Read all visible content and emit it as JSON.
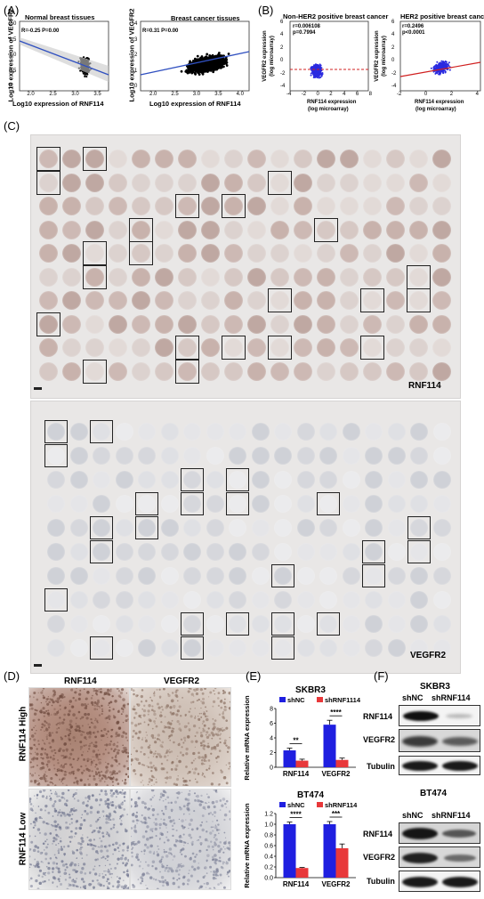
{
  "panels": {
    "A": {
      "label": "(A)",
      "left_plot": {
        "title": "Normal breast tissues",
        "stats": "R=-0.25 P=0.00",
        "xlabel": "Log10 expression of RNF114",
        "ylabel": "Log10 expression of VEGFR2",
        "xticks": [
          "2.0",
          "2.5",
          "3.0",
          "3.5"
        ],
        "yticks": [
          "2.0",
          "1.5",
          "1.0",
          "0.5",
          "0"
        ]
      },
      "right_plot": {
        "title": "Breast cancer tissues",
        "stats": "R=0.31 P=0.00",
        "xlabel": "Log10 expression of RNF114",
        "ylabel": "Log10 expression of VEGFR2",
        "xticks": [
          "2.0",
          "2.5",
          "3.0",
          "3.5",
          "4.0"
        ],
        "yticks": [
          "4",
          "3",
          "2",
          "1",
          "0"
        ]
      }
    },
    "B": {
      "label": "(B)",
      "left_plot": {
        "title": "Non-HER2 positive breast cancer",
        "r": "r=0.006108",
        "p": "p=0.7994",
        "xlabel1": "RNF114 expression",
        "xlabel2": "(log microarray)",
        "ylabel1": "VEGFR2 expression",
        "ylabel2": "(log microarray)",
        "xticks": [
          "-4",
          "-2",
          "0",
          "2",
          "4",
          "6",
          "8"
        ],
        "yticks": [
          "6",
          "4",
          "2",
          "0",
          "-2",
          "-4"
        ]
      },
      "right_plot": {
        "title": "HER2 positive breast cancer",
        "r": "r=0.2496",
        "p": "p<0.0001",
        "xlabel1": "RNF114 expression",
        "xlabel2": "(log microarray)",
        "ylabel1": "VEGFR2 expression",
        "ylabel2": "(log microarray)",
        "xticks": [
          "-2",
          "0",
          "2",
          "4"
        ],
        "yticks": [
          "6",
          "4",
          "2",
          "0",
          "-2",
          "-4"
        ]
      }
    },
    "C": {
      "label": "(C)",
      "top_marker": "RNF114",
      "bottom_marker": "VEGFR2"
    },
    "D": {
      "label": "(D)",
      "col1": "RNF114",
      "col2": "VEGFR2",
      "row1": "RNF114 High",
      "row2": "RNF114 Low"
    },
    "E": {
      "label": "(E)"
    },
    "F": {
      "label": "(F)",
      "top": {
        "cell": "SKBR3",
        "lane1": "shNC",
        "lane2": "shRNF114",
        "rows": [
          "RNF114",
          "VEGFR2",
          "Tubulin"
        ]
      },
      "bottom": {
        "cell": "BT474",
        "lane1": "shNC",
        "lane2": "shRNF114",
        "rows": [
          "RNF114",
          "VEGFR2",
          "Tubulin"
        ]
      }
    }
  },
  "chart_data": [
    {
      "type": "bar",
      "title": "SKBR3",
      "ylabel": "Relative mRNA expression",
      "categories": [
        "RNF114",
        "VEGFR2"
      ],
      "series": [
        {
          "name": "shNC",
          "values": [
            2.3,
            5.8
          ]
        },
        {
          "name": "shRNF1114",
          "values": [
            0.9,
            1.0
          ]
        }
      ],
      "errors": [
        [
          0.3,
          0.6
        ],
        [
          0.2,
          0.25
        ]
      ],
      "significance": [
        "**",
        "****"
      ],
      "yticks": [
        "0",
        "2",
        "4",
        "6",
        "8"
      ],
      "ylim": [
        0,
        8
      ],
      "colors": [
        "#1f1fe0",
        "#e8383a"
      ]
    },
    {
      "type": "bar",
      "title": "BT474",
      "ylabel": "Relative mRNA expression",
      "categories": [
        "RNF114",
        "VEGFR2"
      ],
      "series": [
        {
          "name": "shNC",
          "values": [
            1.0,
            1.0
          ]
        },
        {
          "name": "shRNF114",
          "values": [
            0.18,
            0.55
          ]
        }
      ],
      "errors": [
        [
          0.04,
          0.05
        ],
        [
          0.01,
          0.08
        ]
      ],
      "significance": [
        "****",
        "***"
      ],
      "yticks": [
        "0.0",
        "0.2",
        "0.4",
        "0.6",
        "0.8",
        "1.0",
        "1.2"
      ],
      "ylim": [
        0,
        1.2
      ],
      "colors": [
        "#1f1fe0",
        "#e8383a"
      ]
    }
  ]
}
